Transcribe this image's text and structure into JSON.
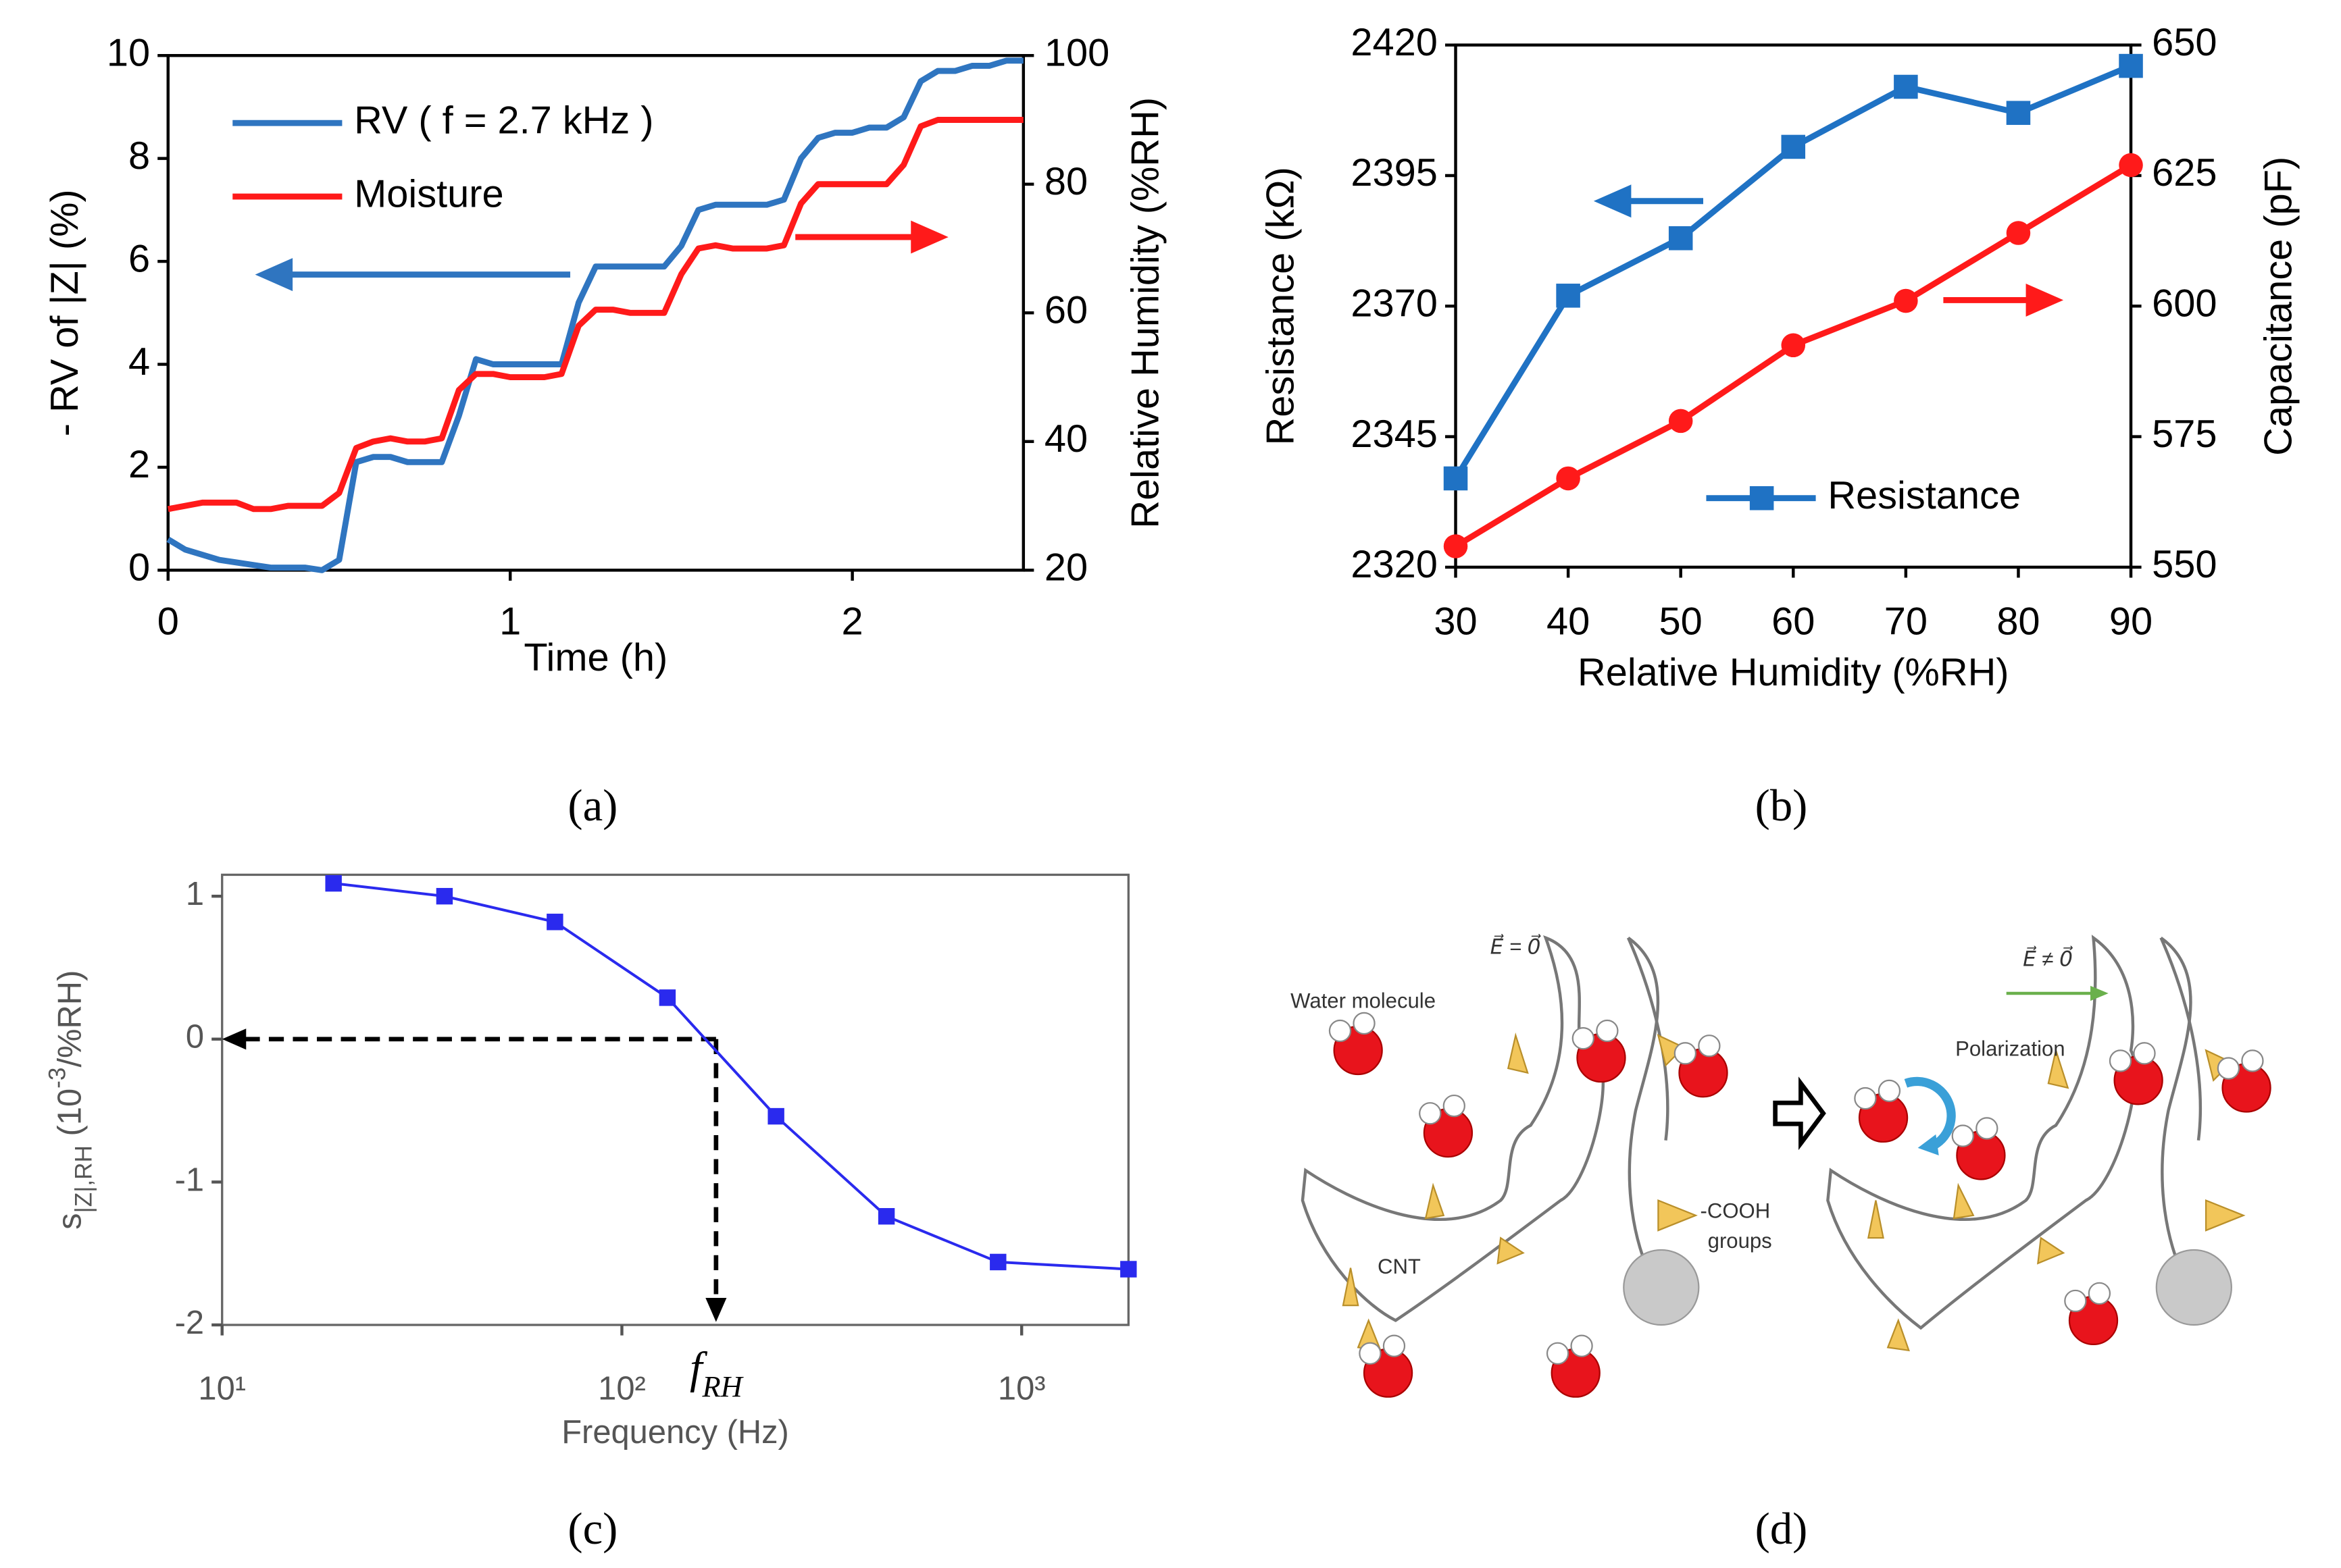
{
  "chart_data": [
    {
      "type": "line",
      "label": "(a)",
      "x_label": "Time (h)",
      "y_label": "- RV of |Z| (%)",
      "y2_label": "Relative Humidity (%RH)",
      "x": [
        0,
        0.05,
        0.1,
        0.15,
        0.2,
        0.25,
        0.3,
        0.35,
        0.4,
        0.45,
        0.5,
        0.55,
        0.6,
        0.65,
        0.7,
        0.75,
        0.8,
        0.85,
        0.9,
        0.95,
        1,
        1.05,
        1.1,
        1.15,
        1.2,
        1.25,
        1.3,
        1.35,
        1.4,
        1.45,
        1.5,
        1.55,
        1.6,
        1.65,
        1.7,
        1.75,
        1.8,
        1.85,
        1.9,
        1.95,
        2,
        2.05,
        2.1,
        2.15,
        2.2,
        2.25,
        2.3,
        2.35,
        2.4,
        2.45,
        2.5
      ],
      "series": [
        {
          "name": "RV ( f = 2.7 kHz )",
          "color": "#2f75c0",
          "values": [
            0.6,
            0.4,
            0.3,
            0.2,
            0.15,
            0.1,
            0.05,
            0.05,
            0.05,
            0,
            0.2,
            2.1,
            2.2,
            2.2,
            2.1,
            2.1,
            2.1,
            3.0,
            4.1,
            4.0,
            4.0,
            4.0,
            4.0,
            4.0,
            5.2,
            5.9,
            5.9,
            5.9,
            5.9,
            5.9,
            6.3,
            7.0,
            7.1,
            7.1,
            7.1,
            7.1,
            7.2,
            8.0,
            8.4,
            8.5,
            8.5,
            8.6,
            8.6,
            8.8,
            9.5,
            9.7,
            9.7,
            9.8,
            9.8,
            9.9,
            9.9
          ]
        },
        {
          "name": "Moisture",
          "color": "#ff1a1a",
          "axis": "y2",
          "values": [
            29.5,
            30,
            30.5,
            30.5,
            30.5,
            29.5,
            29.5,
            30,
            30,
            30,
            32,
            39,
            40,
            40.5,
            40,
            40,
            40.5,
            48,
            50.5,
            50.5,
            50,
            50,
            50,
            50.5,
            58,
            60.5,
            60.5,
            60,
            60,
            60,
            66,
            70,
            70.5,
            70,
            70,
            70,
            70.5,
            77,
            80,
            80,
            80,
            80,
            80,
            83,
            89,
            90,
            90,
            90,
            90,
            90,
            90
          ]
        }
      ],
      "xlim": [
        0,
        2.5
      ],
      "xticks": [
        0,
        1,
        2
      ],
      "ylim": [
        0,
        10
      ],
      "yticks": [
        0,
        2,
        4,
        6,
        8,
        10
      ],
      "y2lim": [
        20,
        100
      ],
      "y2ticks": [
        20,
        40,
        60,
        80,
        100
      ],
      "legend": "upper left",
      "grid": false
    },
    {
      "type": "line",
      "label": "(b)",
      "x_label": "Relative Humidity (%RH)",
      "y_label": "Resistance (kΩ)",
      "y2_label": "Capacitance (pF)",
      "x": [
        30,
        40,
        50,
        60,
        70,
        80,
        90
      ],
      "series": [
        {
          "name": "Resistance",
          "color": "#1f72c4",
          "marker": "square",
          "values": [
            2337,
            2372,
            2383,
            2400.5,
            2412,
            2407,
            2416
          ]
        },
        {
          "color": "#ff1a1a",
          "marker": "circle",
          "axis": "y2",
          "values": [
            554,
            567,
            578,
            592.5,
            601,
            614,
            627
          ]
        }
      ],
      "xlim": [
        30,
        90
      ],
      "xticks": [
        30,
        40,
        50,
        60,
        70,
        80,
        90
      ],
      "ylim": [
        2320,
        2420
      ],
      "yticks": [
        2320,
        2345,
        2370,
        2395,
        2420
      ],
      "y2lim": [
        550,
        650
      ],
      "y2ticks": [
        550,
        575,
        600,
        625,
        650
      ],
      "legend": "lower right",
      "grid": false
    },
    {
      "type": "line",
      "label": "(c)",
      "x_label": "Frequency (Hz)",
      "y_label": [
        "s",
        "|Z|,RH",
        " (10",
        "-3",
        "/%RH)"
      ],
      "xscale": "log",
      "x": [
        19,
        36,
        68,
        130,
        243,
        459,
        873,
        1850
      ],
      "series": [
        {
          "color": "#2a2aee",
          "marker": "square",
          "values": [
            1.09,
            1.0,
            0.82,
            0.29,
            -0.54,
            -1.24,
            -1.56,
            -1.61
          ]
        }
      ],
      "xlim": [
        10,
        1850
      ],
      "xticks": [
        {
          "value": 10,
          "label": "10¹"
        },
        {
          "value": 100,
          "label": "10²"
        },
        {
          "value": 1000,
          "label": "10³"
        }
      ],
      "ylim": [
        -2,
        1.15
      ],
      "yticks": [
        -2,
        -1,
        0,
        1
      ],
      "annotation": {
        "text": "f",
        "subscript": "RH",
        "x": 172,
        "y": 0
      },
      "grid": false
    }
  ],
  "diagram": {
    "label": "(d)",
    "water_molecule": "Water molecule",
    "field_zero": "E⃗ = 0⃗",
    "field_nonzero": "E⃗ ≠ 0⃗",
    "polarization": "Polarization",
    "cnt": "CNT",
    "cooh": "-COOH",
    "groups": "groups"
  }
}
